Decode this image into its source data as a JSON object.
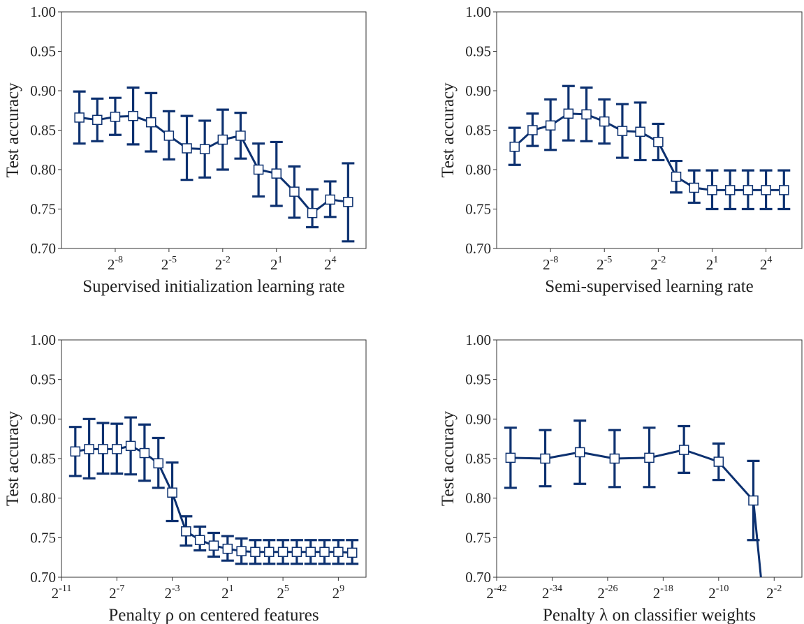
{
  "figure": {
    "line_color": "#0d3170",
    "marker_fill": "#ffffff"
  },
  "chart_data": [
    {
      "type": "line",
      "ylabel": "Test accuracy",
      "xlabel": "Supervised initialization learning rate",
      "x_scale": "log2",
      "xlim": [
        -11,
        6
      ],
      "ylim": [
        0.7,
        1.0
      ],
      "ytick_labels": [
        "0.70",
        "0.75",
        "0.80",
        "0.85",
        "0.90",
        "0.95",
        "1.00"
      ],
      "xtick_exponents": [
        "-8",
        "-5",
        "-2",
        "1",
        "4"
      ],
      "series": [
        {
          "x_exponent": [
            -10,
            -9,
            -8,
            -7,
            -6,
            -5,
            -4,
            -3,
            -2,
            -1,
            0,
            1,
            2,
            3,
            4,
            5
          ],
          "y": [
            0.866,
            0.863,
            0.867,
            0.868,
            0.86,
            0.843,
            0.827,
            0.826,
            0.838,
            0.843,
            0.8,
            0.795,
            0.772,
            0.745,
            0.762,
            0.759
          ],
          "y_low": [
            0.833,
            0.836,
            0.844,
            0.832,
            0.823,
            0.813,
            0.787,
            0.79,
            0.8,
            0.814,
            0.766,
            0.754,
            0.739,
            0.727,
            0.74,
            0.709
          ],
          "y_high": [
            0.899,
            0.89,
            0.891,
            0.904,
            0.897,
            0.874,
            0.868,
            0.862,
            0.876,
            0.872,
            0.833,
            0.835,
            0.804,
            0.775,
            0.785,
            0.808
          ]
        }
      ]
    },
    {
      "type": "line",
      "ylabel": "Test accuracy",
      "xlabel": "Semi-supervised learning rate",
      "x_scale": "log2",
      "xlim": [
        -11,
        6
      ],
      "ylim": [
        0.7,
        1.0
      ],
      "ytick_labels": [
        "0.70",
        "0.75",
        "0.80",
        "0.85",
        "0.90",
        "0.95",
        "1.00"
      ],
      "xtick_exponents": [
        "-8",
        "-5",
        "-2",
        "1",
        "4"
      ],
      "series": [
        {
          "x_exponent": [
            -10,
            -9,
            -8,
            -7,
            -6,
            -5,
            -4,
            -3,
            -2,
            -1,
            0,
            1,
            2,
            3,
            4,
            5
          ],
          "y": [
            0.829,
            0.85,
            0.856,
            0.871,
            0.87,
            0.861,
            0.849,
            0.848,
            0.835,
            0.791,
            0.777,
            0.774,
            0.774,
            0.774,
            0.774,
            0.774
          ],
          "y_low": [
            0.806,
            0.83,
            0.825,
            0.837,
            0.836,
            0.833,
            0.815,
            0.812,
            0.812,
            0.771,
            0.758,
            0.75,
            0.75,
            0.75,
            0.75,
            0.75
          ],
          "y_high": [
            0.853,
            0.871,
            0.889,
            0.906,
            0.904,
            0.889,
            0.883,
            0.885,
            0.858,
            0.811,
            0.799,
            0.799,
            0.799,
            0.799,
            0.799,
            0.799
          ]
        }
      ]
    },
    {
      "type": "line",
      "ylabel": "Test accuracy",
      "xlabel": "Penalty ρ on centered features",
      "x_scale": "log2",
      "xlim": [
        -11,
        11
      ],
      "ylim": [
        0.7,
        1.0
      ],
      "ytick_labels": [
        "0.70",
        "0.75",
        "0.80",
        "0.85",
        "0.90",
        "0.95",
        "1.00"
      ],
      "xtick_exponents": [
        "-11",
        "-7",
        "-3",
        "1",
        "5",
        "9"
      ],
      "series": [
        {
          "x_exponent": [
            -10,
            -9,
            -8,
            -7,
            -6,
            -5,
            -4,
            -3,
            -2,
            -1,
            0,
            1,
            2,
            3,
            4,
            5,
            6,
            7,
            8,
            9,
            10
          ],
          "y": [
            0.859,
            0.862,
            0.862,
            0.862,
            0.866,
            0.857,
            0.844,
            0.807,
            0.758,
            0.747,
            0.74,
            0.736,
            0.733,
            0.732,
            0.732,
            0.732,
            0.732,
            0.732,
            0.732,
            0.732,
            0.731
          ],
          "y_low": [
            0.828,
            0.825,
            0.831,
            0.831,
            0.83,
            0.822,
            0.813,
            0.771,
            0.74,
            0.734,
            0.726,
            0.721,
            0.717,
            0.717,
            0.717,
            0.717,
            0.717,
            0.717,
            0.717,
            0.717,
            0.717
          ],
          "y_high": [
            0.89,
            0.9,
            0.895,
            0.894,
            0.902,
            0.893,
            0.876,
            0.845,
            0.777,
            0.764,
            0.756,
            0.752,
            0.749,
            0.747,
            0.747,
            0.747,
            0.747,
            0.747,
            0.747,
            0.747,
            0.747
          ]
        }
      ]
    },
    {
      "type": "line",
      "ylabel": "Test accuracy",
      "xlabel": "Penalty λ on classifier weights",
      "x_scale": "log2",
      "xlim": [
        -42,
        2
      ],
      "ylim": [
        0.7,
        1.0
      ],
      "ytick_labels": [
        "0.70",
        "0.75",
        "0.80",
        "0.85",
        "0.90",
        "0.95",
        "1.00"
      ],
      "xtick_exponents": [
        "-42",
        "-34",
        "-26",
        "-18",
        "-10",
        "-2"
      ],
      "series": [
        {
          "x_exponent": [
            -40,
            -35,
            -30,
            -25,
            -20,
            -15,
            -10,
            -5,
            -3
          ],
          "y": [
            0.851,
            0.85,
            0.858,
            0.85,
            0.851,
            0.861,
            0.846,
            0.797,
            0.62
          ],
          "y_low": [
            0.813,
            0.815,
            0.818,
            0.814,
            0.814,
            0.832,
            0.823,
            0.747,
            null
          ],
          "y_high": [
            0.889,
            0.886,
            0.898,
            0.886,
            0.889,
            0.891,
            0.869,
            0.847,
            null
          ]
        }
      ]
    }
  ]
}
